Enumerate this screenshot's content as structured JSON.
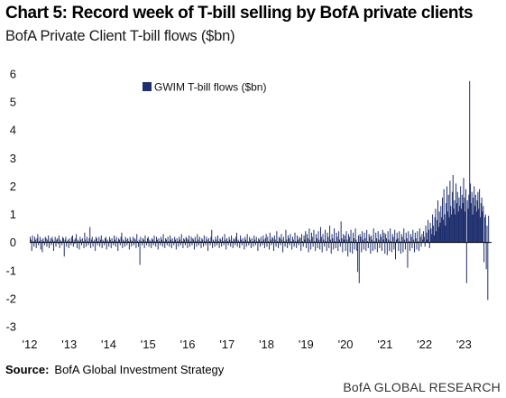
{
  "header": {
    "title": "Chart 5: Record week of T-bill selling by BofA private clients",
    "subtitle": "BofA Private Client T-bill flows ($bn)"
  },
  "footer": {
    "source_label": "Source:",
    "source_text": "BofA Global Investment Strategy",
    "brand": "BofA GLOBAL RESEARCH"
  },
  "colors": {
    "bar": "#1f2f6e",
    "zero_line": "#000000",
    "text": "#111111"
  },
  "chart_data": {
    "type": "bar",
    "title": "",
    "xlabel": "",
    "ylabel": "",
    "ylim": [
      -3,
      6
    ],
    "yticks": [
      6,
      5,
      4,
      3,
      2,
      1,
      0,
      -1,
      -2,
      -3
    ],
    "xticks": [
      "'12",
      "'13",
      "'14",
      "'15",
      "'16",
      "'17",
      "'18",
      "'19",
      "'20",
      "'21",
      "'22",
      "'23"
    ],
    "x_start_year": 2012,
    "legend_position": "top-center",
    "grid": false,
    "series": [
      {
        "name": "GWIM T-bill flows ($bn)",
        "frequency": "weekly",
        "values": [
          0.2,
          0.1,
          -0.3,
          0.25,
          0.05,
          -0.15,
          0.2,
          0.1,
          -0.2,
          0.15,
          0.3,
          -0.1,
          0.05,
          0.2,
          -0.25,
          0.1,
          -0.35,
          0.15,
          0.05,
          -0.1,
          0.2,
          0.15,
          -0.15,
          0.1,
          0.25,
          -0.2,
          0.05,
          0.15,
          -0.1,
          0.2,
          0.1,
          -0.3,
          0.05,
          0.2,
          -0.15,
          0.1,
          0.15,
          -0.05,
          0.25,
          -0.2,
          0.1,
          0.05,
          -0.1,
          0.2,
          0.15,
          -0.5,
          0.1,
          0.2,
          -0.15,
          0.05,
          0.1,
          -0.2,
          0.15,
          0.05,
          -0.1,
          0.2,
          0.25,
          -0.15,
          0.1,
          -0.05,
          0.15,
          0.3,
          -0.2,
          0.1,
          0.05,
          -0.25,
          0.2,
          0.1,
          -0.1,
          0.15,
          0.05,
          -0.2,
          0.35,
          0.1,
          -0.15,
          0.2,
          0.05,
          -0.1,
          0.15,
          0.55,
          -0.2,
          0.1,
          0.2,
          -0.15,
          0.05,
          0.1,
          -0.3,
          0.2,
          0.15,
          -0.1,
          0.05,
          0.2,
          -0.15,
          0.1,
          0.25,
          -0.2,
          0.1,
          0.05,
          -0.1,
          0.15,
          0.2,
          -0.25,
          0.1,
          0.05,
          -0.15,
          0.2,
          0.1,
          -0.2,
          0.15,
          0.05,
          -0.1,
          0.25,
          0.1,
          -0.15,
          0.2,
          0.05,
          -0.3,
          0.15,
          0.1,
          -0.1,
          0.2,
          0.35,
          -0.2,
          0.1,
          0.05,
          -0.15,
          0.2,
          0.1,
          -0.1,
          0.15,
          0.05,
          -0.25,
          0.2,
          0.1,
          -0.15,
          0.05,
          0.2,
          -0.1,
          0.15,
          0.1,
          -0.2,
          0.3,
          0.05,
          -0.15,
          0.1,
          -0.8,
          0.2,
          0.05,
          -0.1,
          0.15,
          0.1,
          -0.2,
          0.25,
          0.05,
          -0.1,
          0.15,
          0.2,
          -0.15,
          0.1,
          0.05,
          -0.2,
          0.15,
          0.1,
          -0.1,
          0.25,
          0.05,
          -0.15,
          0.2,
          0.1,
          -0.25,
          0.15,
          0.05,
          -0.1,
          0.2,
          0.1,
          -0.15,
          0.3,
          0.05,
          -0.2,
          0.15,
          0.1,
          -0.1,
          0.2,
          0.05,
          -0.15,
          0.25,
          0.1,
          -0.2,
          0.15,
          0.05,
          -0.1,
          0.2,
          0.1,
          -0.25,
          0.15,
          0.05,
          -0.15,
          0.2,
          0.1,
          -0.1,
          0.3,
          0.05,
          -0.2,
          0.15,
          0.1,
          -0.1,
          0.2,
          0.15,
          -0.2,
          0.1,
          0.25,
          -0.15,
          0.05,
          0.2,
          -0.1,
          0.15,
          0.1,
          -0.25,
          0.2,
          0.05,
          -0.15,
          0.3,
          0.1,
          -0.1,
          0.2,
          0.05,
          -0.2,
          0.15,
          0.1,
          -0.15,
          0.25,
          0.05,
          -0.1,
          0.2,
          0.1,
          -0.3,
          0.15,
          0.05,
          -0.1,
          0.2,
          0.45,
          -0.2,
          0.1,
          0.05,
          -0.15,
          0.2,
          0.1,
          -0.1,
          0.25,
          0.05,
          -0.2,
          0.15,
          0.1,
          -0.15,
          0.2,
          0.05,
          -0.1,
          0.3,
          0.1,
          -0.25,
          0.15,
          0.05,
          -0.1,
          0.2,
          0.1,
          -0.15,
          0.25,
          0.05,
          -0.2,
          0.15,
          0.1,
          -0.1,
          0.2,
          0.35,
          -0.15,
          0.1,
          0.05,
          -0.2,
          0.25,
          0.1,
          -0.1,
          0.15,
          0.05,
          -0.25,
          0.2,
          0.1,
          -0.15,
          0.3,
          0.05,
          -0.1,
          0.2,
          0.1,
          -0.2,
          0.15,
          0.05,
          -0.15,
          0.25,
          0.1,
          -0.1,
          0.2,
          0.05,
          -0.3,
          0.15,
          0.1,
          -0.15,
          0.2,
          0.05,
          -0.1,
          0.25,
          0.1,
          -0.2,
          0.15,
          0.3,
          -0.15,
          0.2,
          0.05,
          -0.25,
          0.35,
          0.1,
          -0.1,
          0.2,
          0.15,
          -0.3,
          0.25,
          0.1,
          -0.15,
          0.4,
          0.05,
          -0.2,
          0.2,
          0.15,
          -0.1,
          0.3,
          0.1,
          -0.35,
          0.2,
          0.05,
          -0.15,
          0.45,
          0.1,
          -0.2,
          0.25,
          0.15,
          -0.1,
          0.3,
          0.05,
          -0.25,
          0.2,
          0.1,
          -0.15,
          0.35,
          0.05,
          -0.2,
          0.25,
          0.1,
          -0.1,
          0.2,
          0.15,
          -0.3,
          0.3,
          0.05,
          -0.15,
          0.25,
          0.1,
          0.4,
          -0.2,
          0.3,
          0.15,
          -0.35,
          0.5,
          0.1,
          -0.25,
          0.35,
          0.2,
          -0.15,
          0.45,
          0.05,
          -0.3,
          0.3,
          0.15,
          -0.2,
          0.4,
          0.1,
          -0.25,
          0.55,
          0.2,
          -0.35,
          0.3,
          0.1,
          -0.15,
          0.45,
          0.05,
          -0.3,
          0.35,
          0.2,
          -0.2,
          0.6,
          0.1,
          -0.4,
          0.3,
          0.15,
          -0.25,
          0.5,
          0.05,
          -0.2,
          0.35,
          0.2,
          -0.3,
          0.4,
          0.1,
          -0.15,
          0.75,
          0.15,
          -0.35,
          0.3,
          0.1,
          0.25,
          -0.3,
          0.4,
          0.1,
          -0.5,
          0.3,
          0.2,
          -0.35,
          0.45,
          0.05,
          -0.4,
          0.35,
          0.15,
          -0.25,
          0.5,
          0.1,
          -0.3,
          -1.05,
          0.25,
          -1.45,
          0.3,
          0.2,
          -0.35,
          0.4,
          0.1,
          -0.25,
          0.35,
          0.15,
          -0.3,
          0.45,
          0.05,
          -0.2,
          0.3,
          0.2,
          -0.4,
          0.25,
          0.1,
          -0.3,
          0.5,
          0.05,
          -0.25,
          0.35,
          0.15,
          -0.35,
          0.4,
          0.1,
          -0.2,
          0.3,
          0.2,
          -0.3,
          0.45,
          0.1,
          0.35,
          -0.4,
          0.3,
          0.15,
          -0.45,
          0.4,
          0.1,
          -0.3,
          0.5,
          0.05,
          -0.35,
          0.3,
          0.2,
          -0.25,
          0.45,
          -0.6,
          0.1,
          0.35,
          0.15,
          -0.3,
          0.4,
          0.05,
          -0.4,
          0.3,
          0.2,
          -0.35,
          0.5,
          0.1,
          -0.25,
          0.35,
          0.15,
          -0.9,
          0.4,
          0.05,
          -0.3,
          0.3,
          0.2,
          -0.2,
          0.45,
          0.1,
          -0.35,
          0.35,
          0.15,
          -0.25,
          0.4,
          0.05,
          -0.3,
          0.5,
          0.2,
          -0.15,
          0.3,
          0.1,
          0.4,
          0.2,
          -0.15,
          0.6,
          0.35,
          0.1,
          0.8,
          0.45,
          -0.2,
          0.7,
          0.5,
          0.3,
          1.0,
          0.6,
          0.25,
          0.9,
          1.2,
          0.4,
          0.8,
          1.5,
          0.55,
          1.1,
          0.7,
          1.3,
          0.9,
          1.6,
          0.8,
          1.9,
          1.0,
          0.6,
          1.4,
          2.0,
          1.1,
          1.7,
          0.9,
          2.2,
          1.3,
          1.0,
          1.8,
          2.4,
          1.2,
          1.5,
          1.0,
          2.1,
          1.4,
          1.8,
          1.1,
          1.6,
          1.3,
          2.0,
          1.2,
          1.7,
          1.4,
          2.3,
          1.6,
          1.1,
          1.9,
          -1.45,
          1.5,
          1.2,
          1.7,
          5.75,
          2.1,
          1.4,
          1.8,
          1.0,
          1.6,
          2.0,
          1.3,
          1.7,
          1.1,
          1.5,
          1.8,
          1.2,
          1.9,
          0.9,
          1.4,
          1.6,
          1.1,
          1.3,
          -0.7,
          0.9,
          1.0,
          -0.95,
          0.6,
          -2.05,
          0.95
        ]
      }
    ]
  }
}
